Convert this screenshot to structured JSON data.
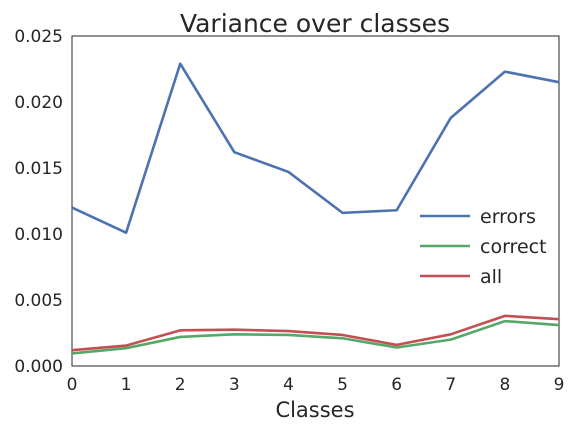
{
  "chart_data": {
    "type": "line",
    "title": "Variance over classes",
    "xlabel": "Classes",
    "ylabel": "",
    "xlim": [
      0,
      9
    ],
    "ylim": [
      0,
      0.025
    ],
    "x": [
      0,
      1,
      2,
      3,
      4,
      5,
      6,
      7,
      8,
      9
    ],
    "x_ticks": [
      "0",
      "1",
      "2",
      "3",
      "4",
      "5",
      "6",
      "7",
      "8",
      "9"
    ],
    "y_ticks": [
      "0.000",
      "0.005",
      "0.010",
      "0.015",
      "0.020",
      "0.025"
    ],
    "y_tick_values": [
      0,
      0.005,
      0.01,
      0.015,
      0.02,
      0.025
    ],
    "grid": false,
    "legend_position": "center-right",
    "series": [
      {
        "name": "errors",
        "color": "#4c72b0",
        "values": [
          0.012,
          0.0101,
          0.0229,
          0.0162,
          0.0147,
          0.0116,
          0.0118,
          0.0188,
          0.0223,
          0.0215
        ]
      },
      {
        "name": "correct",
        "color": "#55a868",
        "values": [
          0.00095,
          0.00135,
          0.0022,
          0.0024,
          0.00235,
          0.0021,
          0.0014,
          0.002,
          0.0034,
          0.0031
        ]
      },
      {
        "name": "all",
        "color": "#c44e52",
        "values": [
          0.0012,
          0.00155,
          0.0027,
          0.00275,
          0.00265,
          0.00235,
          0.0016,
          0.0024,
          0.0038,
          0.00355
        ]
      }
    ]
  }
}
